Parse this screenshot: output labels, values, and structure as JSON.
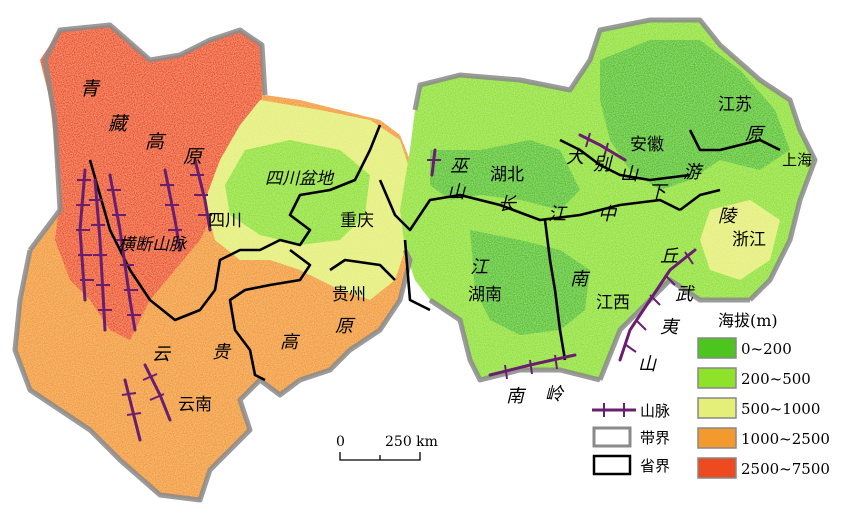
{
  "map": {
    "regions": {
      "qingzang_plateau": [
        "青",
        "藏",
        "高",
        "原"
      ],
      "hengduan": "横断山脉",
      "sichuan_basin": "四川盆地",
      "wu": "巫",
      "shan": "山",
      "hubei": "湖北",
      "chang": "长",
      "jiang1": "江",
      "dabie": [
        "大",
        "别",
        "山"
      ],
      "anhui": "安徽",
      "jiangsu": "江苏",
      "yuan_right": "原",
      "shanghai": "上海",
      "xia": "下",
      "you": "游",
      "ling": "陵",
      "zhejiang": "浙江",
      "zhong": "中",
      "jiang2": "江",
      "sichuan": "四川",
      "chongqing": "重庆",
      "guizhou": "贵州",
      "yuan_mid": "原",
      "gao_mid": "高",
      "jiang_hunan": "江",
      "hunan": "湖南",
      "nan": "南",
      "jiangxi": "江西",
      "qiu": "丘",
      "wuyi": [
        "武",
        "夷",
        "山"
      ],
      "yun": "云",
      "gui": "贵",
      "yunnan": "云南",
      "nanling": [
        "南",
        "岭"
      ]
    },
    "scale": {
      "zero": "0",
      "label": "250 km"
    }
  },
  "legend": {
    "title": "海拔(m)",
    "classes": [
      {
        "label": "0~200",
        "color": "#4cc51e"
      },
      {
        "label": "200~500",
        "color": "#8fe22a"
      },
      {
        "label": "500~1000",
        "color": "#e4ef7a"
      },
      {
        "label": "1000~2500",
        "color": "#f39a2e"
      },
      {
        "label": "2500~7500",
        "color": "#ee4a1f"
      }
    ],
    "symbols": [
      {
        "label": "山脉",
        "icon": "mountain-range-icon"
      },
      {
        "label": "带界",
        "icon": "belt-boundary-icon"
      },
      {
        "label": "省界",
        "icon": "province-boundary-icon"
      }
    ]
  },
  "colors": {
    "belt_boundary": "#8a8a8a",
    "province_boundary": "#000000",
    "mountain_line": "#6a1f6e"
  }
}
